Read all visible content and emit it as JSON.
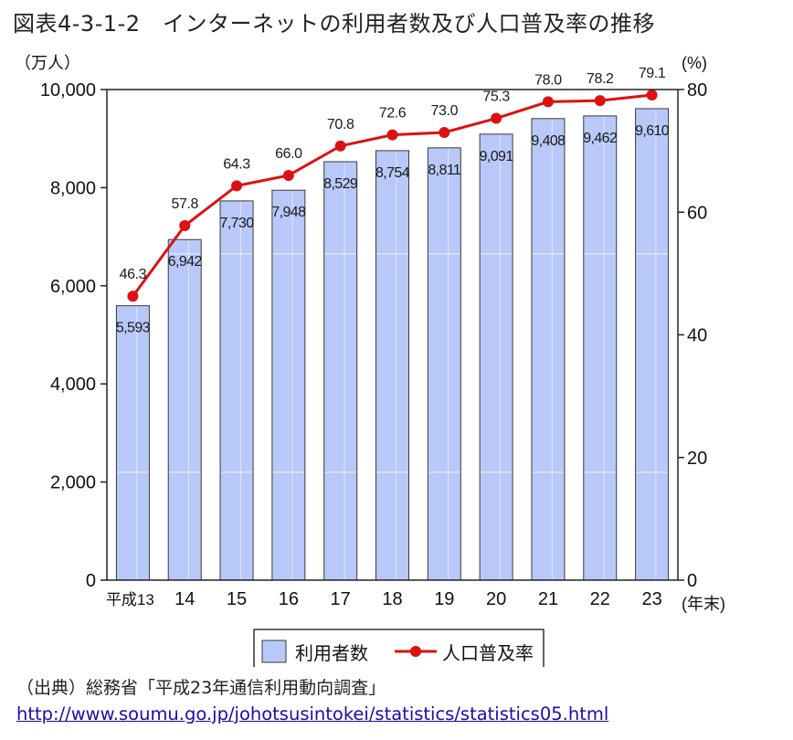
{
  "title": "図表4-3-1-2　インターネットの利用者数及び人口普及率の推移",
  "source_label": "（出典）総務省「平成23年通信利用動向調査」",
  "source_url": "http://www.soumu.go.jp/johotsusintokei/statistics/statistics05.html",
  "chart_data": {
    "type": "bar",
    "categories": [
      "平成13",
      "14",
      "15",
      "16",
      "17",
      "18",
      "19",
      "20",
      "21",
      "22",
      "23"
    ],
    "x_unit": "(年末)",
    "series": [
      {
        "name": "利用者数",
        "type": "bar",
        "axis": "left",
        "values": [
          5593,
          6942,
          7730,
          7948,
          8529,
          8754,
          8811,
          9091,
          9408,
          9462,
          9610
        ],
        "value_labels": [
          "5,593",
          "6,942",
          "7,730",
          "7,948",
          "8,529",
          "8,754",
          "8,811",
          "9,091",
          "9,408",
          "9,462",
          "9,610"
        ],
        "color": "#b8c8f8"
      },
      {
        "name": "人口普及率",
        "type": "line",
        "axis": "right",
        "values": [
          46.3,
          57.8,
          64.3,
          66.0,
          70.8,
          72.6,
          73.0,
          75.3,
          78.0,
          78.2,
          79.1
        ],
        "value_labels": [
          "46.3",
          "57.8",
          "64.3",
          "66.0",
          "70.8",
          "72.6",
          "73.0",
          "75.3",
          "78.0",
          "78.2",
          "79.1"
        ],
        "color": "#dd1111"
      }
    ],
    "y_left": {
      "unit": "（万人）",
      "ylim": [
        0,
        10000
      ],
      "ticks": [
        0,
        2000,
        4000,
        6000,
        8000,
        10000
      ],
      "tick_labels": [
        "0",
        "2,000",
        "4,000",
        "6,000",
        "8,000",
        "10,000"
      ]
    },
    "y_right": {
      "unit": "(%)",
      "ylim": [
        0,
        80
      ],
      "ticks": [
        0,
        20,
        40,
        60,
        80
      ],
      "tick_labels": [
        "0",
        "20",
        "40",
        "60",
        "80"
      ]
    },
    "legend_position": "bottom-center",
    "grid": false
  }
}
